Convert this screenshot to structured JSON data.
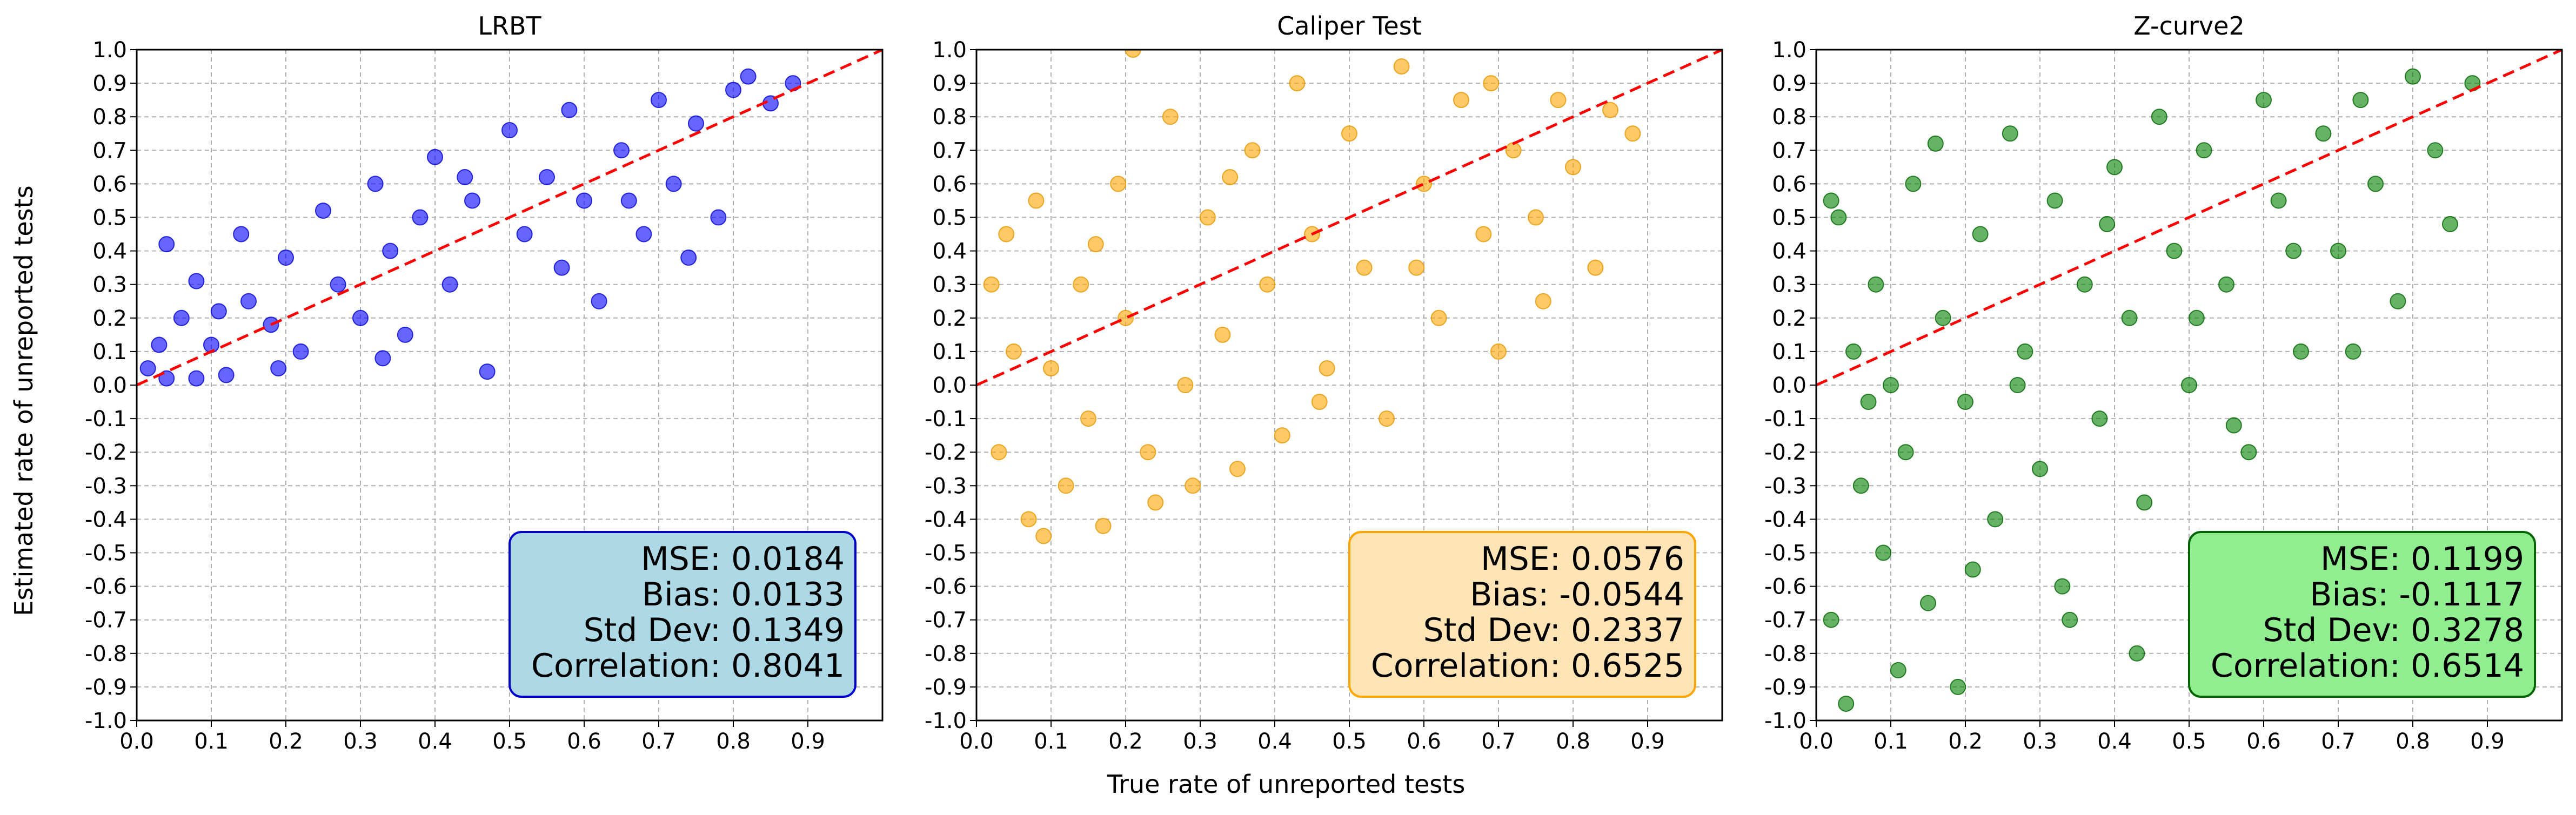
{
  "figure": {
    "xlabel": "True rate of unreported tests",
    "ylabel": "Estimated rate of unreported tests"
  },
  "chart_data": [
    {
      "type": "scatter",
      "title": "LRBT",
      "xlabel": "True rate of unreported tests",
      "ylabel": "Estimated rate of unreported tests",
      "xlim": [
        0.0,
        1.0
      ],
      "ylim": [
        -1.0,
        1.0
      ],
      "x_ticks": [
        "0.0",
        "0.1",
        "0.2",
        "0.3",
        "0.4",
        "0.5",
        "0.6",
        "0.7",
        "0.8",
        "0.9"
      ],
      "y_ticks": [
        "-1.0",
        "-0.9",
        "-0.8",
        "-0.7",
        "-0.6",
        "-0.5",
        "-0.4",
        "-0.3",
        "-0.2",
        "-0.1",
        "0.0",
        "0.1",
        "0.2",
        "0.3",
        "0.4",
        "0.5",
        "0.6",
        "0.7",
        "0.8",
        "0.9",
        "1.0"
      ],
      "grid": true,
      "point_color": "#0000ff",
      "point_edge": "#0000cc",
      "reference_line": {
        "from": [
          0,
          0
        ],
        "to": [
          1,
          1
        ],
        "color": "#ff0000",
        "style": "dashed"
      },
      "points": [
        [
          0.015,
          0.05
        ],
        [
          0.03,
          0.12
        ],
        [
          0.04,
          0.02
        ],
        [
          0.06,
          0.2
        ],
        [
          0.08,
          0.31
        ],
        [
          0.1,
          0.12
        ],
        [
          0.12,
          0.03
        ],
        [
          0.14,
          0.45
        ],
        [
          0.15,
          0.25
        ],
        [
          0.18,
          0.18
        ],
        [
          0.2,
          0.38
        ],
        [
          0.22,
          0.1
        ],
        [
          0.25,
          0.52
        ],
        [
          0.27,
          0.3
        ],
        [
          0.3,
          0.2
        ],
        [
          0.32,
          0.6
        ],
        [
          0.34,
          0.4
        ],
        [
          0.36,
          0.15
        ],
        [
          0.38,
          0.5
        ],
        [
          0.4,
          0.68
        ],
        [
          0.42,
          0.3
        ],
        [
          0.45,
          0.55
        ],
        [
          0.47,
          0.04
        ],
        [
          0.5,
          0.76
        ],
        [
          0.52,
          0.45
        ],
        [
          0.55,
          0.62
        ],
        [
          0.58,
          0.82
        ],
        [
          0.6,
          0.55
        ],
        [
          0.62,
          0.25
        ],
        [
          0.65,
          0.7
        ],
        [
          0.68,
          0.45
        ],
        [
          0.7,
          0.85
        ],
        [
          0.72,
          0.6
        ],
        [
          0.75,
          0.78
        ],
        [
          0.78,
          0.5
        ],
        [
          0.8,
          0.88
        ],
        [
          0.82,
          0.92
        ],
        [
          0.85,
          0.84
        ],
        [
          0.88,
          0.9
        ],
        [
          0.04,
          0.42
        ],
        [
          0.08,
          0.02
        ],
        [
          0.11,
          0.22
        ],
        [
          0.19,
          0.05
        ],
        [
          0.33,
          0.08
        ],
        [
          0.44,
          0.62
        ],
        [
          0.57,
          0.35
        ],
        [
          0.66,
          0.55
        ],
        [
          0.74,
          0.38
        ]
      ],
      "stats": {
        "mse": "MSE: 0.0184",
        "bias": "Bias: 0.0133",
        "std": "Std Dev: 0.1349",
        "corr": "Correlation: 0.8041"
      },
      "stats_box": {
        "fill": "#add8e6",
        "edge": "#0000cc"
      }
    },
    {
      "type": "scatter",
      "title": "Caliper Test",
      "xlabel": "True rate of unreported tests",
      "ylabel": "Estimated rate of unreported tests",
      "xlim": [
        0.0,
        1.0
      ],
      "ylim": [
        -1.0,
        1.0
      ],
      "x_ticks": [
        "0.0",
        "0.1",
        "0.2",
        "0.3",
        "0.4",
        "0.5",
        "0.6",
        "0.7",
        "0.8",
        "0.9"
      ],
      "y_ticks": [
        "-1.0",
        "-0.9",
        "-0.8",
        "-0.7",
        "-0.6",
        "-0.5",
        "-0.4",
        "-0.3",
        "-0.2",
        "-0.1",
        "0.0",
        "0.1",
        "0.2",
        "0.3",
        "0.4",
        "0.5",
        "0.6",
        "0.7",
        "0.8",
        "0.9",
        "1.0"
      ],
      "grid": true,
      "point_color": "#ffa500",
      "point_edge": "#e69500",
      "reference_line": {
        "from": [
          0,
          0
        ],
        "to": [
          1,
          1
        ],
        "color": "#ff0000",
        "style": "dashed"
      },
      "points": [
        [
          0.02,
          0.3
        ],
        [
          0.03,
          -0.2
        ],
        [
          0.05,
          0.1
        ],
        [
          0.07,
          -0.4
        ],
        [
          0.08,
          0.55
        ],
        [
          0.1,
          0.05
        ],
        [
          0.12,
          -0.3
        ],
        [
          0.14,
          0.3
        ],
        [
          0.15,
          -0.1
        ],
        [
          0.17,
          -0.42
        ],
        [
          0.19,
          0.6
        ],
        [
          0.2,
          0.2
        ],
        [
          0.21,
          1.0
        ],
        [
          0.23,
          -0.2
        ],
        [
          0.26,
          0.8
        ],
        [
          0.28,
          0.0
        ],
        [
          0.29,
          -0.3
        ],
        [
          0.31,
          0.5
        ],
        [
          0.33,
          0.15
        ],
        [
          0.35,
          -0.25
        ],
        [
          0.37,
          0.7
        ],
        [
          0.39,
          0.3
        ],
        [
          0.41,
          -0.15
        ],
        [
          0.43,
          0.9
        ],
        [
          0.45,
          0.45
        ],
        [
          0.47,
          0.05
        ],
        [
          0.5,
          0.75
        ],
        [
          0.52,
          0.35
        ],
        [
          0.55,
          -0.1
        ],
        [
          0.57,
          0.95
        ],
        [
          0.6,
          0.6
        ],
        [
          0.62,
          0.2
        ],
        [
          0.65,
          0.85
        ],
        [
          0.68,
          0.45
        ],
        [
          0.7,
          0.1
        ],
        [
          0.72,
          0.7
        ],
        [
          0.75,
          0.5
        ],
        [
          0.78,
          0.85
        ],
        [
          0.8,
          0.65
        ],
        [
          0.83,
          0.35
        ],
        [
          0.85,
          0.82
        ],
        [
          0.88,
          0.75
        ],
        [
          0.04,
          0.45
        ],
        [
          0.09,
          -0.45
        ],
        [
          0.16,
          0.42
        ],
        [
          0.24,
          -0.35
        ],
        [
          0.34,
          0.62
        ],
        [
          0.46,
          -0.05
        ],
        [
          0.59,
          0.35
        ],
        [
          0.69,
          0.9
        ],
        [
          0.76,
          0.25
        ]
      ],
      "stats": {
        "mse": "MSE: 0.0576",
        "bias": "Bias: -0.0544",
        "std": "Std Dev: 0.2337",
        "corr": "Correlation: 0.6525"
      },
      "stats_box": {
        "fill": "#ffe4b5",
        "edge": "#ffa500"
      }
    },
    {
      "type": "scatter",
      "title": "Z-curve2",
      "xlabel": "True rate of unreported tests",
      "ylabel": "Estimated rate of unreported tests",
      "xlim": [
        0.0,
        1.0
      ],
      "ylim": [
        -1.0,
        1.0
      ],
      "x_ticks": [
        "0.0",
        "0.1",
        "0.2",
        "0.3",
        "0.4",
        "0.5",
        "0.6",
        "0.7",
        "0.8",
        "0.9"
      ],
      "y_ticks": [
        "-1.0",
        "-0.9",
        "-0.8",
        "-0.7",
        "-0.6",
        "-0.5",
        "-0.4",
        "-0.3",
        "-0.2",
        "-0.1",
        "0.0",
        "0.1",
        "0.2",
        "0.3",
        "0.4",
        "0.5",
        "0.6",
        "0.7",
        "0.8",
        "0.9",
        "1.0"
      ],
      "grid": true,
      "point_color": "#008000",
      "point_edge": "#006400",
      "reference_line": {
        "from": [
          0,
          0
        ],
        "to": [
          1,
          1
        ],
        "color": "#ff0000",
        "style": "dashed"
      },
      "points": [
        [
          0.02,
          -0.7
        ],
        [
          0.03,
          0.5
        ],
        [
          0.04,
          -0.95
        ],
        [
          0.05,
          0.1
        ],
        [
          0.06,
          -0.3
        ],
        [
          0.08,
          0.3
        ],
        [
          0.09,
          -0.5
        ],
        [
          0.1,
          0.0
        ],
        [
          0.12,
          -0.2
        ],
        [
          0.13,
          0.6
        ],
        [
          0.15,
          -0.65
        ],
        [
          0.17,
          0.2
        ],
        [
          0.19,
          -0.9
        ],
        [
          0.2,
          -0.05
        ],
        [
          0.22,
          0.45
        ],
        [
          0.24,
          -0.4
        ],
        [
          0.26,
          0.75
        ],
        [
          0.28,
          0.1
        ],
        [
          0.3,
          -0.25
        ],
        [
          0.32,
          0.55
        ],
        [
          0.34,
          -0.7
        ],
        [
          0.36,
          0.3
        ],
        [
          0.38,
          -0.1
        ],
        [
          0.4,
          0.65
        ],
        [
          0.42,
          0.2
        ],
        [
          0.44,
          -0.35
        ],
        [
          0.46,
          0.8
        ],
        [
          0.48,
          0.4
        ],
        [
          0.5,
          0.0
        ],
        [
          0.52,
          0.7
        ],
        [
          0.55,
          0.3
        ],
        [
          0.58,
          -0.2
        ],
        [
          0.6,
          0.85
        ],
        [
          0.62,
          0.55
        ],
        [
          0.65,
          0.1
        ],
        [
          0.68,
          0.75
        ],
        [
          0.7,
          0.4
        ],
        [
          0.73,
          0.85
        ],
        [
          0.75,
          0.6
        ],
        [
          0.78,
          0.25
        ],
        [
          0.8,
          0.92
        ],
        [
          0.83,
          0.7
        ],
        [
          0.85,
          0.48
        ],
        [
          0.88,
          0.9
        ],
        [
          0.02,
          0.55
        ],
        [
          0.07,
          -0.05
        ],
        [
          0.11,
          -0.85
        ],
        [
          0.16,
          0.72
        ],
        [
          0.21,
          -0.55
        ],
        [
          0.27,
          0.0
        ],
        [
          0.33,
          -0.6
        ],
        [
          0.39,
          0.48
        ],
        [
          0.43,
          -0.8
        ],
        [
          0.51,
          0.2
        ],
        [
          0.56,
          -0.12
        ],
        [
          0.64,
          0.4
        ],
        [
          0.72,
          0.1
        ]
      ],
      "stats": {
        "mse": "MSE: 0.1199",
        "bias": "Bias: -0.1117",
        "std": "Std Dev: 0.3278",
        "corr": "Correlation: 0.6514"
      },
      "stats_box": {
        "fill": "#90ee90",
        "edge": "#006400"
      }
    }
  ]
}
